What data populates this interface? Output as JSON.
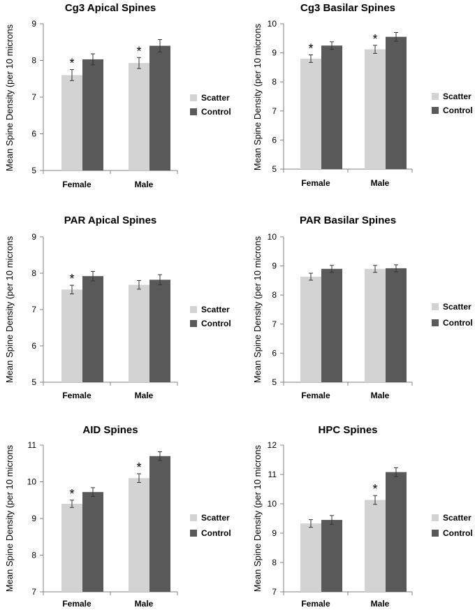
{
  "colors": {
    "scatter": "#d3d3d3",
    "control": "#595959",
    "axis": "#808080",
    "errorbar": "#333333"
  },
  "chart_data": [
    {
      "type": "bar",
      "title": "Cg3 Apical Spines",
      "ylabel": "Mean Spine Density (per 10 microns",
      "ylim": [
        5,
        9
      ],
      "yticks": [
        5,
        6,
        7,
        8,
        9
      ],
      "categories": [
        "Female",
        "Male"
      ],
      "series": [
        {
          "name": "Scatter",
          "values": [
            7.6,
            7.93
          ],
          "errors": [
            0.15,
            0.15
          ]
        },
        {
          "name": "Control",
          "values": [
            8.03,
            8.4
          ],
          "errors": [
            0.15,
            0.17
          ]
        }
      ],
      "significance": [
        {
          "series": "Scatter",
          "category": "Female",
          "symbol": "*"
        },
        {
          "series": "Scatter",
          "category": "Male",
          "symbol": "*"
        }
      ]
    },
    {
      "type": "bar",
      "title": "Cg3 Basilar Spines",
      "ylabel": "Mean Spine Density (per 10 microns",
      "ylim": [
        5,
        10
      ],
      "yticks": [
        5,
        6,
        7,
        8,
        9,
        10
      ],
      "categories": [
        "Female",
        "Male"
      ],
      "series": [
        {
          "name": "Scatter",
          "values": [
            8.8,
            9.12
          ],
          "errors": [
            0.13,
            0.14
          ]
        },
        {
          "name": "Control",
          "values": [
            9.25,
            9.55
          ],
          "errors": [
            0.13,
            0.15
          ]
        }
      ],
      "significance": [
        {
          "series": "Scatter",
          "category": "Female",
          "symbol": "*"
        },
        {
          "series": "Scatter",
          "category": "Male",
          "symbol": "*"
        }
      ]
    },
    {
      "type": "bar",
      "title": "PAR Apical Spines",
      "ylabel": "Mean Spine Density (per 10 microns",
      "ylim": [
        5,
        9
      ],
      "yticks": [
        5,
        6,
        7,
        8,
        9
      ],
      "categories": [
        "Female",
        "Male"
      ],
      "series": [
        {
          "name": "Scatter",
          "values": [
            7.55,
            7.68
          ],
          "errors": [
            0.12,
            0.12
          ]
        },
        {
          "name": "Control",
          "values": [
            7.92,
            7.82
          ],
          "errors": [
            0.13,
            0.14
          ]
        }
      ],
      "significance": [
        {
          "series": "Scatter",
          "category": "Female",
          "symbol": "*"
        }
      ]
    },
    {
      "type": "bar",
      "title": "PAR Basilar Spines",
      "ylabel": "Mean Spine Density (per 10 microns",
      "ylim": [
        5,
        10
      ],
      "yticks": [
        5,
        6,
        7,
        8,
        9,
        10
      ],
      "categories": [
        "Female",
        "Male"
      ],
      "series": [
        {
          "name": "Scatter",
          "values": [
            8.63,
            8.9
          ],
          "errors": [
            0.12,
            0.12
          ]
        },
        {
          "name": "Control",
          "values": [
            8.9,
            8.92
          ],
          "errors": [
            0.12,
            0.12
          ]
        }
      ],
      "significance": []
    },
    {
      "type": "bar",
      "title": "AID Spines",
      "ylabel": "Mean Spine Density (per 10 microns",
      "ylim": [
        7,
        11
      ],
      "yticks": [
        7,
        8,
        9,
        10,
        11
      ],
      "categories": [
        "Female",
        "Male"
      ],
      "series": [
        {
          "name": "Scatter",
          "values": [
            9.4,
            10.1
          ],
          "errors": [
            0.1,
            0.12
          ]
        },
        {
          "name": "Control",
          "values": [
            9.72,
            10.7
          ],
          "errors": [
            0.12,
            0.12
          ]
        }
      ],
      "significance": [
        {
          "series": "Scatter",
          "category": "Female",
          "symbol": "*"
        },
        {
          "series": "Scatter",
          "category": "Male",
          "symbol": "*"
        }
      ]
    },
    {
      "type": "bar",
      "title": "HPC Spines",
      "ylabel": "Mean Spine Density (per 10 microns",
      "ylim": [
        7,
        12
      ],
      "yticks": [
        7,
        8,
        9,
        10,
        11,
        12
      ],
      "categories": [
        "Female",
        "Male"
      ],
      "series": [
        {
          "name": "Scatter",
          "values": [
            9.33,
            10.13
          ],
          "errors": [
            0.13,
            0.15
          ]
        },
        {
          "name": "Control",
          "values": [
            9.45,
            11.08
          ],
          "errors": [
            0.15,
            0.15
          ]
        }
      ],
      "significance": [
        {
          "series": "Scatter",
          "category": "Male",
          "symbol": "*"
        }
      ]
    }
  ]
}
